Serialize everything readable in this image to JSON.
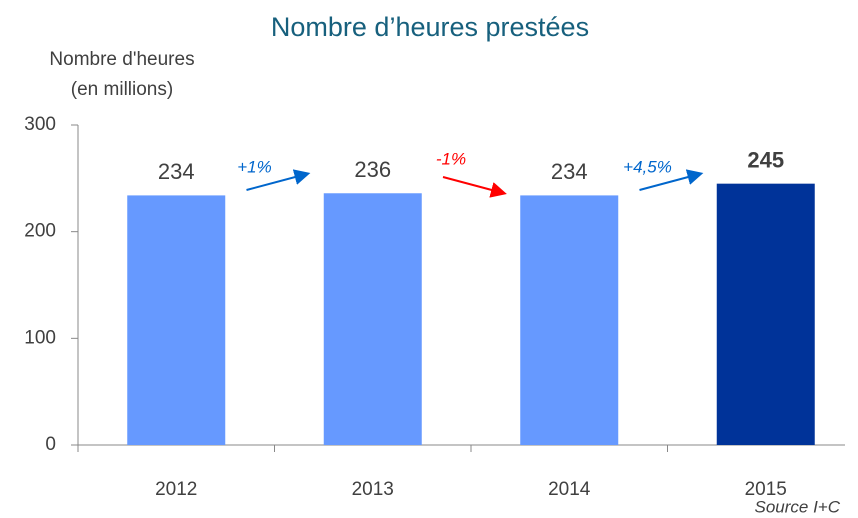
{
  "chart_data": {
    "type": "bar",
    "title": "Nombre d’heures prestées",
    "y_label": [
      "Nombre d'heures",
      "(en millions)"
    ],
    "categories": [
      "2012",
      "2013",
      "2014",
      "2015"
    ],
    "values": [
      234,
      236,
      234,
      245
    ],
    "colors": [
      "#6699ff",
      "#6699ff",
      "#6699ff",
      "#003399"
    ],
    "ylim": [
      0,
      300
    ],
    "yticks": [
      0,
      100,
      200,
      300
    ],
    "annotations": [
      {
        "text": "+1%",
        "color": "#0066cc"
      },
      {
        "text": "-1%",
        "color": "#ff0000"
      },
      {
        "text": "+4,5%",
        "color": "#0066cc"
      }
    ],
    "source": "Source I+C"
  }
}
